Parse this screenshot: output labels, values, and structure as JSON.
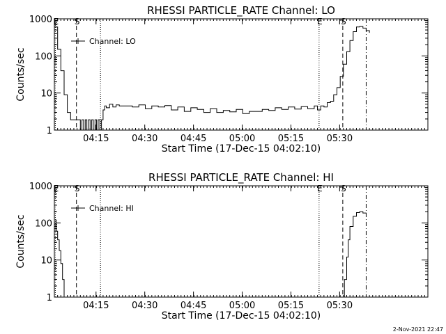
{
  "footer": {
    "timestamp": "2-Nov-2021 22:47"
  },
  "chart_data": [
    {
      "type": "line",
      "title": "RHESSI PARTICLE_RATE Channel: LO",
      "xlabel": "Start Time (17-Dec-15 04:02:10)",
      "ylabel": "Counts/sec",
      "legend": {
        "label": "Channel: LO",
        "placement": "top-left"
      },
      "x_unit": "minutes since 04:02:10",
      "xlim": [
        0,
        115
      ],
      "ylim": [
        1,
        1000
      ],
      "y_scale": "log",
      "y_ticks": [
        "1",
        "10",
        "100",
        "1000"
      ],
      "x_ticks": [
        {
          "label": "04:15",
          "value": 12.83
        },
        {
          "label": "04:30",
          "value": 27.83
        },
        {
          "label": "04:45",
          "value": 42.83
        },
        {
          "label": "05:00",
          "value": 57.83
        },
        {
          "label": "05:15",
          "value": 72.83
        },
        {
          "label": "05:30",
          "value": 87.83
        }
      ],
      "markers": [
        {
          "label": "E",
          "x": 0.3,
          "style": "dotted"
        },
        {
          "label": "S",
          "x": 6.8,
          "style": "dashed"
        },
        {
          "label": "",
          "x": 14.2,
          "style": "dotted"
        },
        {
          "label": "E",
          "x": 81.5,
          "style": "dotted"
        },
        {
          "label": "S",
          "x": 88.8,
          "style": "dashed"
        },
        {
          "label": "",
          "x": 96.0,
          "style": "dashdot"
        }
      ],
      "series": [
        {
          "name": "Channel: LO",
          "x": [
            0.2,
            1,
            2,
            3,
            4,
            5,
            6,
            7,
            8,
            8.5,
            9,
            9.5,
            10,
            10.5,
            11,
            11.5,
            12,
            12.5,
            13,
            13.5,
            14,
            14.5,
            15,
            15.5,
            16,
            17,
            18,
            19,
            20,
            22,
            24,
            26,
            28,
            30,
            32,
            34,
            36,
            38,
            40,
            42,
            44,
            46,
            48,
            50,
            52,
            54,
            56,
            58,
            60,
            62,
            64,
            66,
            68,
            70,
            72,
            74,
            76,
            78,
            80,
            81,
            82,
            83,
            84,
            85,
            86,
            87,
            88,
            89,
            90,
            91,
            92,
            93,
            94,
            95,
            96,
            97
          ],
          "y": [
            600,
            150,
            40,
            9,
            3,
            1.9,
            1.9,
            1.9,
            1,
            1.9,
            1,
            1.9,
            1,
            1.9,
            1,
            1.9,
            1,
            1.9,
            1,
            1.9,
            1,
            1.9,
            3.5,
            4.5,
            4,
            5,
            4.2,
            4.8,
            4.5,
            4.5,
            4.2,
            4.8,
            3.8,
            4.5,
            4.2,
            4.6,
            3.5,
            4.2,
            3.2,
            4,
            3.6,
            3,
            3.8,
            3,
            3.4,
            3.1,
            3.6,
            2.8,
            3.2,
            3.2,
            3.6,
            3.4,
            4,
            3.6,
            4.2,
            3.7,
            4.3,
            3.8,
            4.5,
            3.5,
            4.5,
            4.2,
            5.5,
            6,
            9,
            14,
            28,
            60,
            130,
            260,
            450,
            600,
            620,
            560,
            480,
            420
          ]
        }
      ]
    },
    {
      "type": "line",
      "title": "RHESSI PARTICLE_RATE Channel: HI",
      "xlabel": "Start Time (17-Dec-15 04:02:10)",
      "ylabel": "Counts/sec",
      "legend": {
        "label": "Channel: HI",
        "placement": "top-left"
      },
      "x_unit": "minutes since 04:02:10",
      "xlim": [
        0,
        115
      ],
      "ylim": [
        1,
        1000
      ],
      "y_scale": "log",
      "y_ticks": [
        "1",
        "10",
        "100",
        "1000"
      ],
      "x_ticks": [
        {
          "label": "04:15",
          "value": 12.83
        },
        {
          "label": "04:30",
          "value": 27.83
        },
        {
          "label": "04:45",
          "value": 42.83
        },
        {
          "label": "05:00",
          "value": 57.83
        },
        {
          "label": "05:15",
          "value": 72.83
        },
        {
          "label": "05:30",
          "value": 87.83
        }
      ],
      "markers": [
        {
          "label": "E",
          "x": 0.3,
          "style": "dotted"
        },
        {
          "label": "S",
          "x": 6.8,
          "style": "dashed"
        },
        {
          "label": "",
          "x": 14.2,
          "style": "dotted"
        },
        {
          "label": "E",
          "x": 81.5,
          "style": "dotted"
        },
        {
          "label": "S",
          "x": 88.8,
          "style": "dashed"
        },
        {
          "label": "",
          "x": 96.0,
          "style": "dashdot"
        }
      ],
      "series": [
        {
          "name": "Channel: HI",
          "x": [
            0.2,
            0.6,
            1,
            1.5,
            2,
            2.5,
            3,
            88.8,
            89.3,
            90,
            90.5,
            91,
            92,
            93,
            94,
            95,
            96
          ],
          "y": [
            120,
            60,
            35,
            18,
            8,
            3,
            1,
            1,
            3,
            12,
            35,
            80,
            150,
            190,
            200,
            185,
            175
          ]
        }
      ]
    }
  ]
}
